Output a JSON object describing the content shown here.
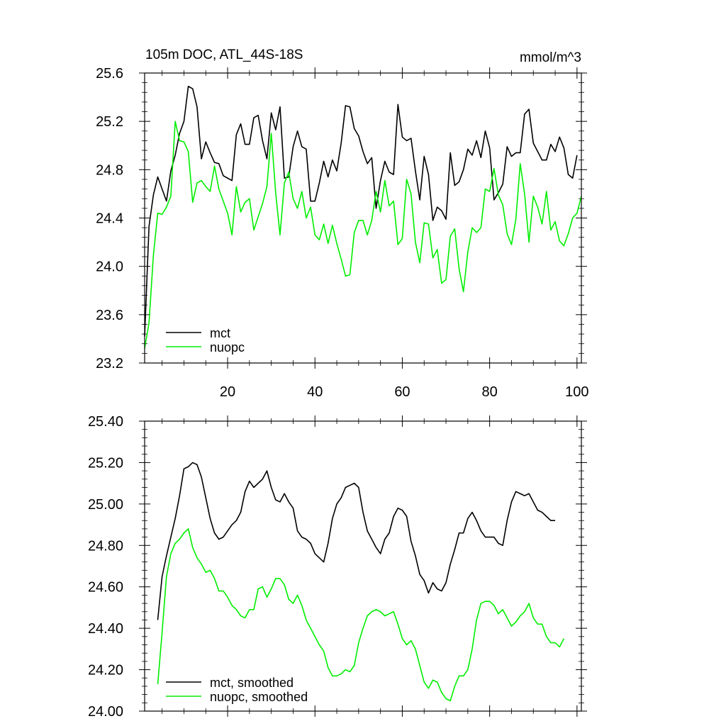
{
  "chart_data": [
    {
      "type": "line",
      "title": "105m DOC, ATL_44S-18S",
      "units": "mmol/m^3",
      "xlim": [
        1,
        101
      ],
      "ylim": [
        23.2,
        25.6
      ],
      "xticks": [
        20,
        40,
        60,
        80,
        100
      ],
      "xtick_labels": [
        "20",
        "40",
        "60",
        "80",
        "100"
      ],
      "yticks": [
        23.2,
        23.6,
        24.0,
        24.4,
        24.8,
        25.2,
        25.6
      ],
      "ytick_labels": [
        "23.2",
        "23.6",
        "24.0",
        "24.4",
        "24.8",
        "25.2",
        "25.6"
      ],
      "legend": "bottom-left",
      "series": [
        {
          "name": "mct",
          "color": "#000000",
          "x_start": 1,
          "values": [
            23.42,
            24.33,
            24.59,
            24.74,
            24.64,
            24.54,
            24.79,
            24.92,
            25.1,
            25.2,
            25.49,
            25.47,
            25.32,
            24.89,
            25.03,
            24.94,
            24.86,
            24.85,
            24.75,
            24.73,
            24.71,
            25.09,
            25.18,
            25.01,
            25.01,
            25.23,
            25.25,
            25.04,
            24.89,
            25.27,
            25.13,
            25.32,
            24.73,
            24.74,
            24.99,
            25.12,
            24.99,
            24.97,
            24.54,
            24.54,
            24.69,
            24.87,
            24.74,
            24.88,
            24.79,
            25.02,
            25.33,
            25.32,
            25.14,
            25.08,
            24.95,
            24.85,
            24.9,
            24.48,
            24.71,
            24.87,
            24.78,
            24.76,
            25.34,
            25.07,
            25.04,
            25.06,
            24.79,
            24.55,
            24.91,
            24.76,
            24.38,
            24.49,
            24.46,
            24.39,
            24.94,
            24.67,
            24.7,
            24.8,
            24.97,
            24.92,
            25.04,
            24.9,
            25.12,
            24.98,
            24.55,
            24.61,
            24.68,
            24.99,
            24.91,
            24.94,
            24.94,
            25.26,
            25.3,
            25.02,
            24.95,
            24.88,
            24.88,
            25.01,
            24.95,
            25.07,
            24.98,
            24.76,
            24.73,
            24.92
          ]
        },
        {
          "name": "nuopc",
          "color": "#00ee00",
          "x_start": 1,
          "values": [
            23.32,
            23.53,
            24.09,
            24.44,
            24.43,
            24.49,
            24.58,
            25.2,
            25.04,
            25.03,
            24.95,
            24.53,
            24.69,
            24.71,
            24.66,
            24.62,
            24.83,
            24.64,
            24.54,
            24.44,
            24.26,
            24.66,
            24.45,
            24.53,
            24.56,
            24.3,
            24.41,
            24.52,
            24.66,
            25.1,
            24.61,
            24.26,
            24.69,
            24.78,
            24.56,
            24.48,
            24.62,
            24.4,
            24.49,
            24.26,
            24.22,
            24.35,
            24.19,
            24.34,
            24.19,
            24.06,
            23.92,
            23.93,
            24.28,
            24.38,
            24.38,
            24.26,
            24.38,
            24.62,
            24.45,
            24.71,
            24.5,
            24.54,
            24.18,
            24.23,
            24.72,
            24.6,
            24.2,
            24.03,
            24.36,
            24.35,
            24.07,
            24.14,
            23.86,
            23.89,
            24.25,
            24.31,
            23.98,
            23.79,
            24.12,
            24.32,
            24.28,
            24.32,
            24.64,
            24.62,
            24.81,
            24.59,
            24.51,
            24.27,
            24.18,
            24.39,
            24.85,
            24.6,
            24.2,
            24.58,
            24.49,
            24.35,
            24.62,
            24.3,
            24.37,
            24.21,
            24.17,
            24.27,
            24.4,
            24.44,
            24.58
          ]
        }
      ]
    },
    {
      "type": "line",
      "title": "",
      "xlim": [
        1,
        101
      ],
      "ylim": [
        24.0,
        25.4
      ],
      "xticks": [
        20,
        40,
        60,
        80,
        100
      ],
      "yticks": [
        24.0,
        24.2,
        24.4,
        24.6,
        24.8,
        25.0,
        25.2,
        25.4
      ],
      "ytick_labels": [
        "24.00",
        "24.20",
        "24.40",
        "24.60",
        "24.80",
        "25.00",
        "25.20",
        "25.40"
      ],
      "legend": "bottom-left",
      "series": [
        {
          "name": "mct, smoothed",
          "color": "#000000",
          "x_start": 4,
          "values": [
            24.44,
            24.65,
            24.75,
            24.84,
            24.93,
            25.04,
            25.17,
            25.18,
            25.2,
            25.19,
            25.13,
            25.03,
            24.93,
            24.86,
            24.83,
            24.84,
            24.87,
            24.9,
            24.92,
            24.96,
            25.06,
            25.11,
            25.08,
            25.1,
            25.12,
            25.16,
            25.08,
            25.02,
            25.01,
            25.05,
            25.01,
            24.98,
            24.87,
            24.84,
            24.83,
            24.81,
            24.76,
            24.74,
            24.72,
            24.81,
            24.93,
            25.0,
            25.03,
            25.08,
            25.09,
            25.1,
            25.08,
            24.96,
            24.87,
            24.83,
            24.79,
            24.76,
            24.83,
            24.86,
            24.94,
            24.98,
            24.97,
            24.94,
            24.82,
            24.75,
            24.66,
            24.63,
            24.57,
            24.62,
            24.59,
            24.58,
            24.62,
            24.71,
            24.78,
            24.86,
            24.86,
            24.93,
            24.96,
            24.92,
            24.87,
            24.84,
            24.84,
            24.84,
            24.81,
            24.8,
            24.92,
            25.01,
            25.06,
            25.05,
            25.04,
            25.05,
            25.01,
            24.97,
            24.96,
            24.94,
            24.92,
            24.92
          ]
        },
        {
          "name": "nuopc, smoothed",
          "color": "#00ee00",
          "x_start": 4,
          "values": [
            24.13,
            24.38,
            24.65,
            24.76,
            24.81,
            24.83,
            24.86,
            24.88,
            24.79,
            24.74,
            24.71,
            24.67,
            24.68,
            24.64,
            24.58,
            24.58,
            24.55,
            24.51,
            24.49,
            24.46,
            24.45,
            24.49,
            24.49,
            24.59,
            24.6,
            24.55,
            24.59,
            24.64,
            24.64,
            24.61,
            24.54,
            24.52,
            24.56,
            24.51,
            24.44,
            24.4,
            24.36,
            24.32,
            24.29,
            24.21,
            24.17,
            24.17,
            24.18,
            24.2,
            24.19,
            24.22,
            24.33,
            24.4,
            24.46,
            24.48,
            24.49,
            24.48,
            24.46,
            24.47,
            24.48,
            24.42,
            24.35,
            24.32,
            24.34,
            24.3,
            24.22,
            24.14,
            24.11,
            24.15,
            24.14,
            24.09,
            24.06,
            24.05,
            24.12,
            24.17,
            24.17,
            24.2,
            24.3,
            24.44,
            24.52,
            24.53,
            24.53,
            24.51,
            24.47,
            24.49,
            24.45,
            24.41,
            24.43,
            24.46,
            24.48,
            24.52,
            24.45,
            24.42,
            24.42,
            24.36,
            24.33,
            24.33,
            24.31,
            24.35
          ]
        }
      ]
    }
  ]
}
